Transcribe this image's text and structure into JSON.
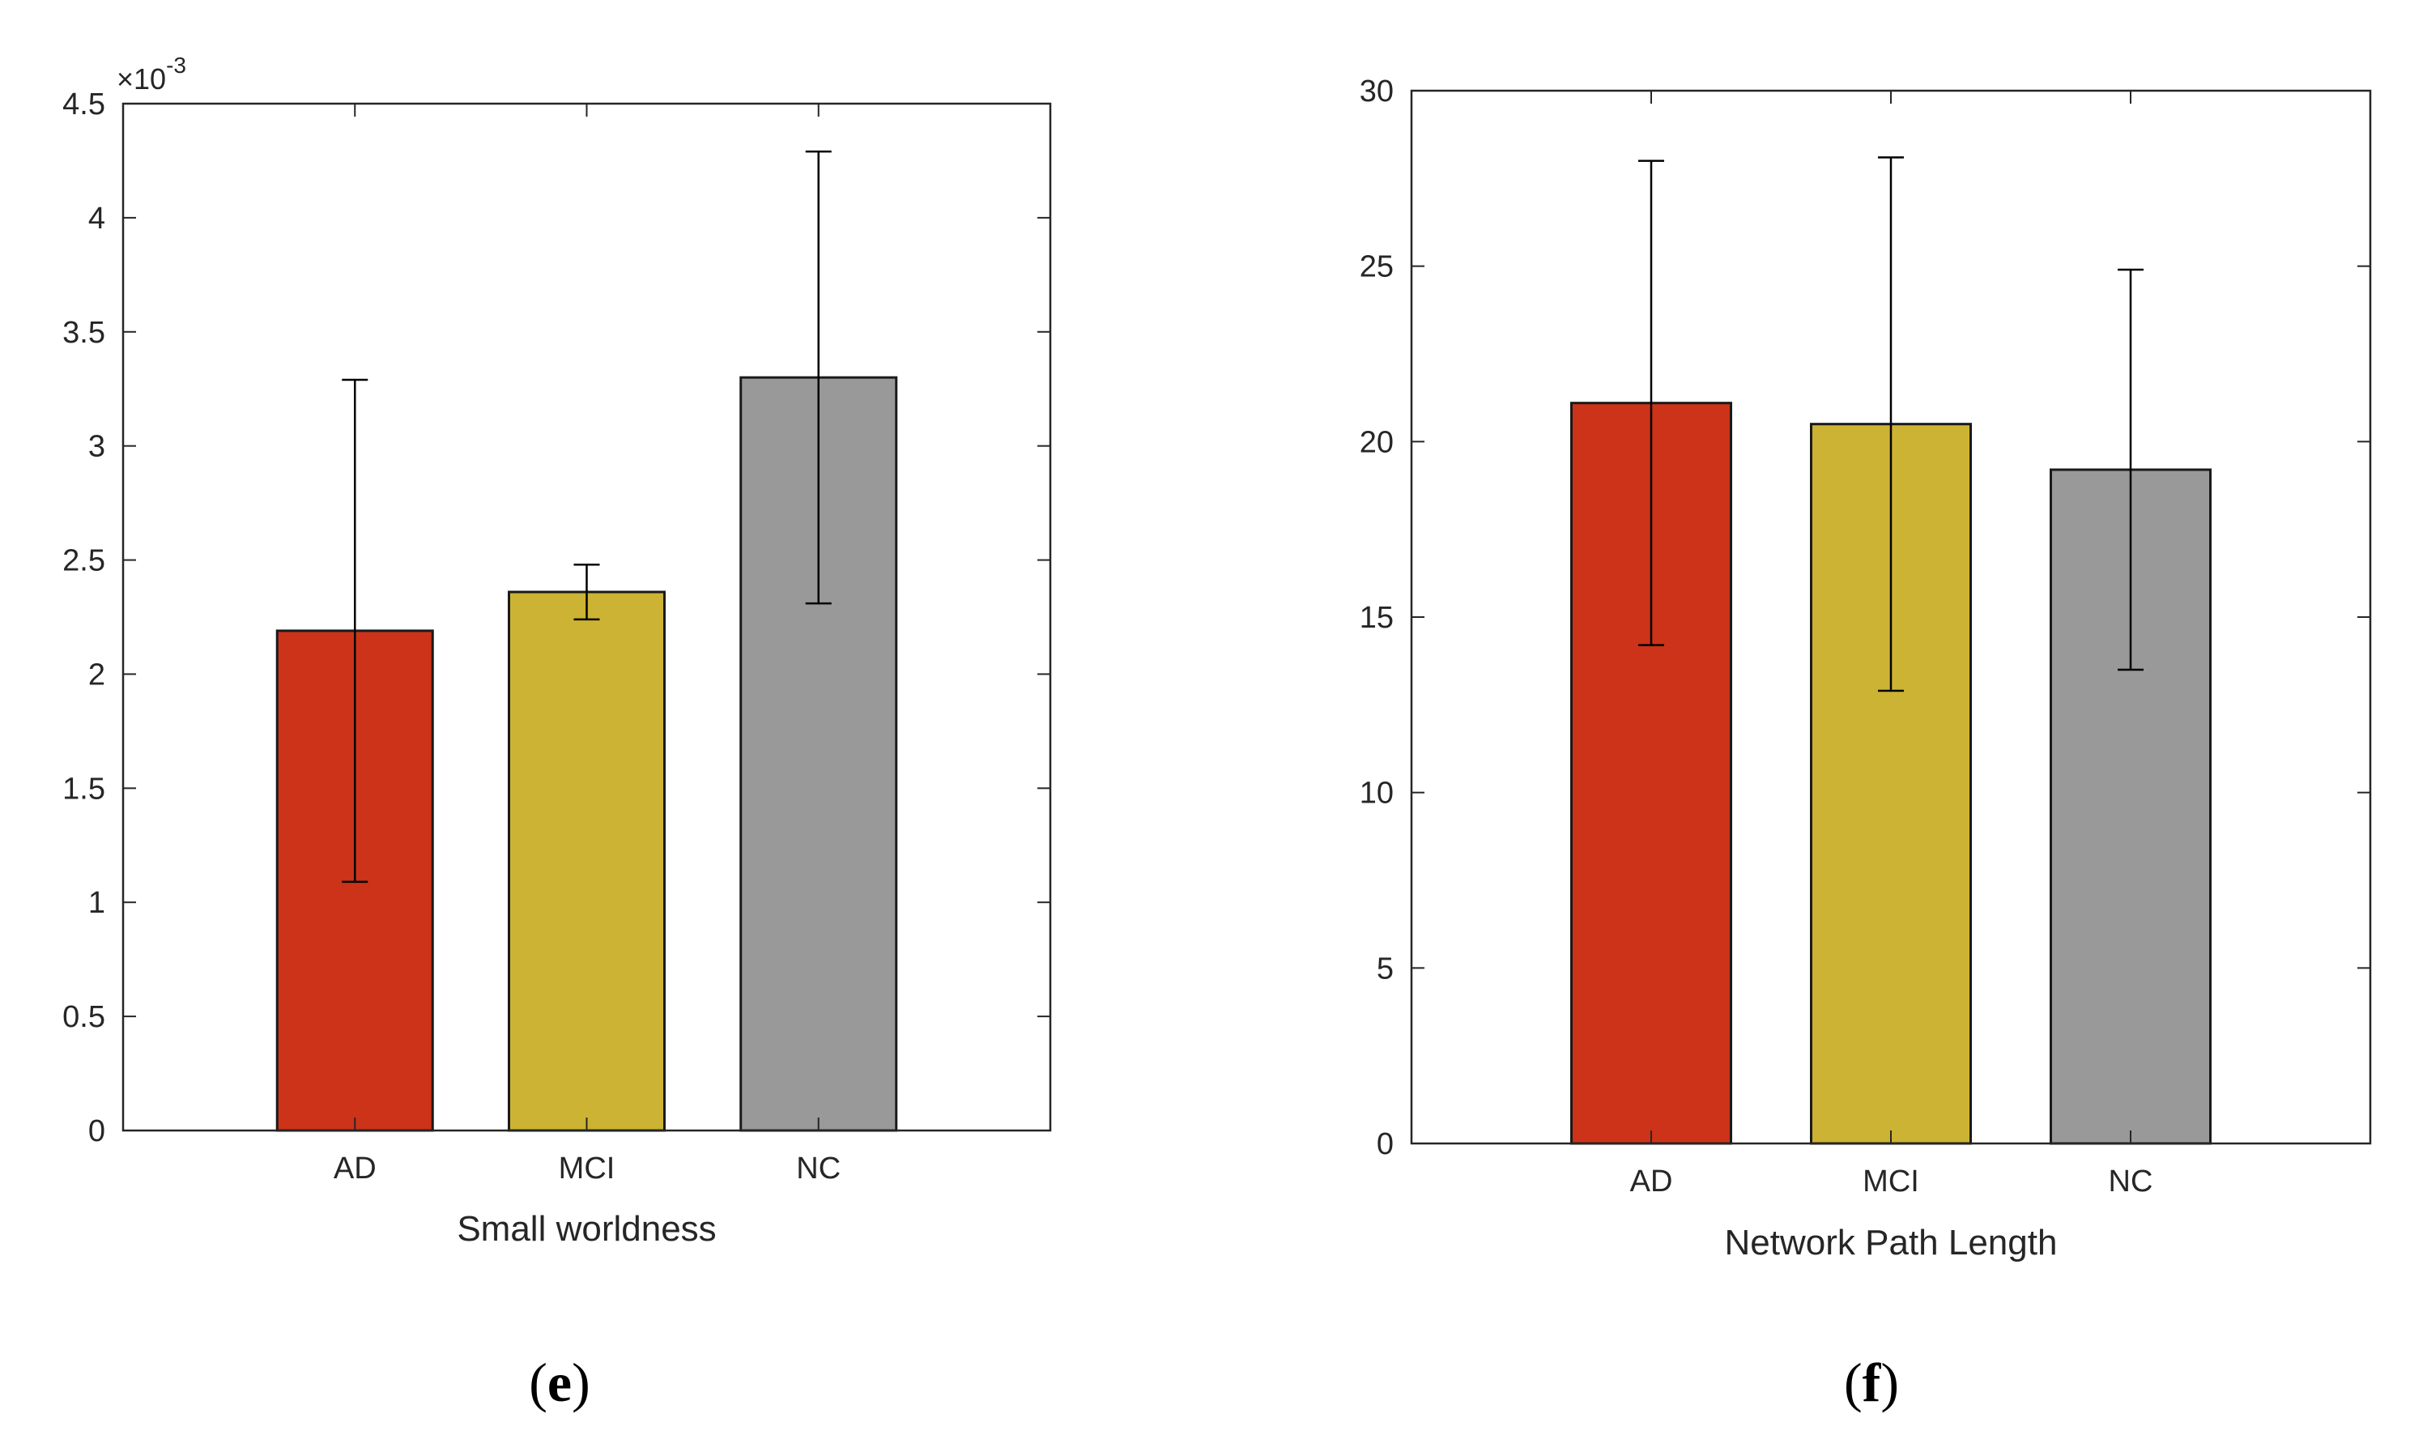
{
  "chart_data": [
    {
      "type": "bar",
      "panel": "e",
      "caption_open": "(",
      "caption_letter": "e",
      "caption_close": ")",
      "xlabel": "Small worldness",
      "ylabel": "",
      "exponent_prefix": "×10",
      "exponent_power": "-3",
      "categories": [
        "AD",
        "MCI",
        "NC"
      ],
      "values": [
        2.19,
        2.36,
        3.3
      ],
      "error_low": [
        1.09,
        2.24,
        2.31
      ],
      "error_high": [
        3.29,
        2.48,
        4.29
      ],
      "colors": [
        "#cc3319",
        "#ccb333",
        "#999999"
      ],
      "ylim": [
        0,
        4.5
      ],
      "yticks": [
        0,
        0.5,
        1,
        1.5,
        2,
        2.5,
        3,
        3.5,
        4,
        4.5
      ],
      "ytick_labels": [
        "0",
        "0.5",
        "1",
        "1.5",
        "2",
        "2.5",
        "3",
        "3.5",
        "4",
        "4.5"
      ]
    },
    {
      "type": "bar",
      "panel": "f",
      "caption_open": "(",
      "caption_letter": "f",
      "caption_close": ")",
      "xlabel": "Network Path Length",
      "ylabel": "",
      "categories": [
        "AD",
        "MCI",
        "NC"
      ],
      "values": [
        21.1,
        20.5,
        19.2
      ],
      "error_low": [
        14.2,
        12.9,
        13.5
      ],
      "error_high": [
        28.0,
        28.1,
        24.9
      ],
      "colors": [
        "#cc3319",
        "#ccb333",
        "#999999"
      ],
      "ylim": [
        0,
        30
      ],
      "yticks": [
        0,
        5,
        10,
        15,
        20,
        25,
        30
      ],
      "ytick_labels": [
        "0",
        "5",
        "10",
        "15",
        "20",
        "25",
        "30"
      ]
    }
  ]
}
